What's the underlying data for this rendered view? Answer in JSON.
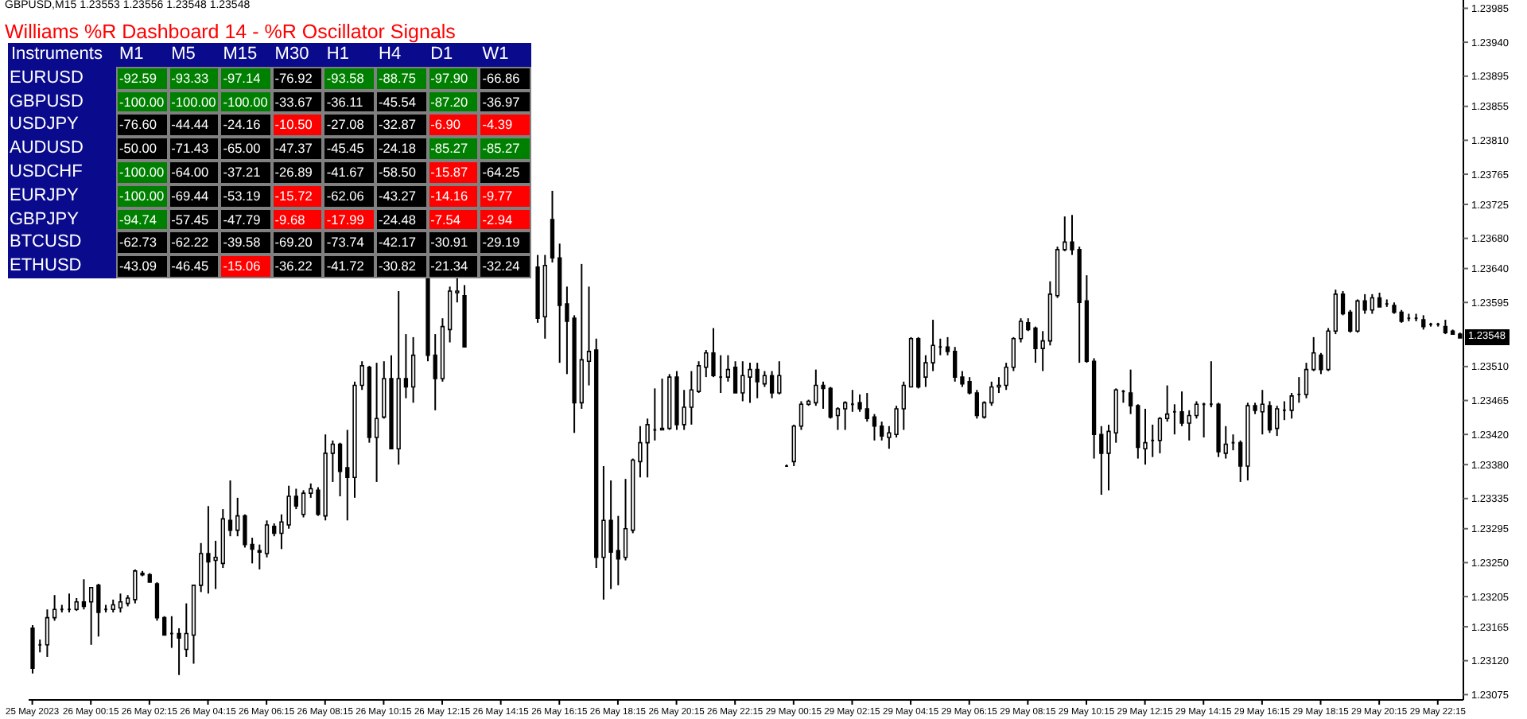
{
  "chart_data": [
    {
      "type": "candlestick",
      "title": "GBPUSD,M15  1.23553 1.23556 1.23548 1.23548",
      "color": "#000000",
      "categories": [
        "25 May 2023",
        null,
        null,
        null,
        null,
        null,
        null,
        null,
        "26 May 00:15",
        null,
        null,
        null,
        null,
        null,
        null,
        null,
        "26 May 02:15",
        null,
        null,
        null,
        null,
        null,
        null,
        null,
        "26 May 04:15",
        null,
        null,
        null,
        null,
        null,
        null,
        null,
        "26 May 06:15",
        null,
        null,
        null,
        null,
        null,
        null,
        null,
        "26 May 08:15",
        null,
        null,
        null,
        null,
        null,
        null,
        null,
        "26 May 10:15",
        null,
        null,
        null,
        null,
        null,
        null,
        null,
        "26 May 12:15",
        null,
        null,
        null,
        null,
        null,
        null,
        null,
        "26 May 14:15",
        null,
        null,
        null,
        null,
        null,
        null,
        null,
        "26 May 16:15",
        null,
        null,
        null,
        null,
        null,
        null,
        null,
        "26 May 18:15",
        null,
        null,
        null,
        null,
        null,
        null,
        null,
        "26 May 20:15",
        null,
        null,
        null,
        null,
        null,
        null,
        null,
        "26 May 22:15",
        null,
        null,
        null,
        null,
        null,
        null,
        null,
        "29 May 00:15",
        null,
        null,
        null,
        null,
        null,
        null,
        null,
        "29 May 02:15",
        null,
        null,
        null,
        null,
        null,
        null,
        null,
        "29 May 04:15",
        null,
        null,
        null,
        null,
        null,
        null,
        null,
        "29 May 06:15",
        null,
        null,
        null,
        null,
        null,
        null,
        null,
        "29 May 08:15",
        null,
        null,
        null,
        null,
        null,
        null,
        null,
        "29 May 10:15",
        null,
        null,
        null,
        null,
        null,
        null,
        null,
        "29 May 12:15",
        null,
        null,
        null,
        null,
        null,
        null,
        null,
        "29 May 14:15",
        null,
        null,
        null,
        null,
        null,
        null,
        null,
        "29 May 16:15",
        null,
        null,
        null,
        null,
        null,
        null,
        null,
        "29 May 18:15",
        null,
        null,
        null,
        null,
        null,
        null,
        null,
        "29 May 20:15",
        null,
        null,
        null,
        null,
        null,
        null,
        null,
        "29 May 22:15",
        null,
        null,
        null
      ],
      "ohlc": [
        [
          1.23163,
          1.23167,
          1.23103,
          1.2311
        ],
        [
          1.23141,
          1.23148,
          1.23131,
          1.23141
        ],
        [
          1.23141,
          1.23188,
          1.23125,
          1.23177
        ],
        [
          1.23177,
          1.23207,
          1.23173,
          1.23188
        ],
        [
          1.23188,
          1.23194,
          1.23184,
          1.23188
        ],
        [
          1.23188,
          1.23209,
          1.23184,
          1.23188
        ],
        [
          1.23188,
          1.23203,
          1.23186,
          1.23198
        ],
        [
          1.23198,
          1.23228,
          1.23188,
          1.23192
        ],
        [
          1.23198,
          1.23217,
          1.23141,
          1.23217
        ],
        [
          1.2322,
          1.23222,
          1.23152,
          1.23184
        ],
        [
          1.23188,
          1.23194,
          1.23184,
          1.23188
        ],
        [
          1.23188,
          1.23201,
          1.23184,
          1.23194
        ],
        [
          1.2319,
          1.23209,
          1.23184,
          1.23198
        ],
        [
          1.23196,
          1.23207,
          1.23192,
          1.23203
        ],
        [
          1.23201,
          1.23241,
          1.23196,
          1.23239
        ],
        [
          1.23236,
          1.23239,
          1.23232,
          1.23234
        ],
        [
          1.23234,
          1.23236,
          1.23224,
          1.23224
        ],
        [
          1.23222,
          1.23224,
          1.23173,
          1.23177
        ],
        [
          1.23177,
          1.23179,
          1.23154,
          1.23154
        ],
        [
          1.23156,
          1.23179,
          1.23137,
          1.23156
        ],
        [
          1.23156,
          1.23163,
          1.23101,
          1.2315
        ],
        [
          1.23135,
          1.23196,
          1.23125,
          1.23156
        ],
        [
          1.23154,
          1.2322,
          1.23116,
          1.2322
        ],
        [
          1.2322,
          1.23276,
          1.23211,
          1.23262
        ],
        [
          1.23262,
          1.23325,
          1.23209,
          1.23251
        ],
        [
          1.23253,
          1.23279,
          1.23215,
          1.23257
        ],
        [
          1.23249,
          1.23321,
          1.23243,
          1.23308
        ],
        [
          1.23306,
          1.23359,
          1.23285,
          1.23293
        ],
        [
          1.23293,
          1.23336,
          1.23285,
          1.23312
        ],
        [
          1.23312,
          1.23314,
          1.2327,
          1.23274
        ],
        [
          1.23274,
          1.23283,
          1.23249,
          1.23268
        ],
        [
          1.23266,
          1.23274,
          1.23241,
          1.23264
        ],
        [
          1.23262,
          1.23306,
          1.23257,
          1.233
        ],
        [
          1.23298,
          1.23302,
          1.23285,
          1.23289
        ],
        [
          1.23289,
          1.23314,
          1.23268,
          1.23304
        ],
        [
          1.233,
          1.23352,
          1.23295,
          1.23338
        ],
        [
          1.23338,
          1.23348,
          1.23321,
          1.23325
        ],
        [
          1.23314,
          1.23346,
          1.2331,
          1.23342
        ],
        [
          1.23342,
          1.23355,
          1.23336,
          1.23348
        ],
        [
          1.23346,
          1.2335,
          1.23312,
          1.23314
        ],
        [
          1.23312,
          1.2342,
          1.23306,
          1.23395
        ],
        [
          1.23395,
          1.23412,
          1.23357,
          1.23407
        ],
        [
          1.23407,
          1.23409,
          1.23338,
          1.23371
        ],
        [
          1.23376,
          1.23426,
          1.23306,
          1.23363
        ],
        [
          1.23363,
          1.2349,
          1.23336,
          1.23485
        ],
        [
          1.23485,
          1.23517,
          1.23479,
          1.23511
        ],
        [
          1.23509,
          1.23511,
          1.23409,
          1.23416
        ],
        [
          1.23416,
          1.23515,
          1.23357,
          1.23441
        ],
        [
          1.23443,
          1.23517,
          1.23441,
          1.23494
        ],
        [
          1.23494,
          1.23525,
          1.23401,
          1.23401
        ],
        [
          1.23401,
          1.2361,
          1.2338,
          1.23494
        ],
        [
          1.23494,
          1.23553,
          1.23468,
          1.23483
        ],
        [
          1.23483,
          1.23549,
          1.23462,
          1.23525
        ],
        null,
        [
          1.23648,
          1.23663,
          1.23517,
          1.23525
        ],
        [
          1.23525,
          1.23553,
          1.23452,
          1.23494
        ],
        [
          1.23494,
          1.23574,
          1.2349,
          1.23563
        ],
        [
          1.23559,
          1.23616,
          1.23542,
          1.2361
        ],
        [
          1.23608,
          1.23627,
          1.23595,
          1.2361
        ],
        [
          1.23604,
          1.23618,
          1.23536,
          1.23536
        ],
        null,
        null,
        null,
        null,
        null,
        null,
        null,
        null,
        null,
        [
          1.23642,
          1.23658,
          1.23568,
          1.23574
        ],
        [
          1.23576,
          1.23658,
          1.23547,
          1.23644
        ],
        [
          1.23705,
          1.23743,
          1.23648,
          1.23654
        ],
        [
          1.23654,
          1.23673,
          1.23515,
          1.23591
        ],
        [
          1.23593,
          1.23616,
          1.235,
          1.2357
        ],
        [
          1.23574,
          1.23578,
          1.23422,
          1.23462
        ],
        [
          1.23462,
          1.23646,
          1.23454,
          1.23519
        ],
        [
          1.23517,
          1.23616,
          1.23485,
          1.2353
        ],
        [
          1.23532,
          1.23547,
          1.23243,
          1.23257
        ],
        [
          1.23257,
          1.23378,
          1.23201,
          1.23306
        ],
        [
          1.23306,
          1.23359,
          1.23215,
          1.23264
        ],
        [
          1.23266,
          1.23312,
          1.2322,
          1.23255
        ],
        [
          1.23257,
          1.23361,
          1.23253,
          1.23295
        ],
        [
          1.23293,
          1.23388,
          1.23289,
          1.23386
        ],
        [
          1.23384,
          1.23431,
          1.23363,
          1.23409
        ],
        [
          1.23409,
          1.23441,
          1.23363,
          1.23433
        ],
        [
          1.23426,
          1.23481,
          1.23412,
          1.23426
        ],
        [
          1.23426,
          1.23494,
          1.23426,
          1.23428
        ],
        [
          1.23428,
          1.235,
          1.23426,
          1.23496
        ],
        [
          1.23496,
          1.23504,
          1.23426,
          1.23433
        ],
        [
          1.23433,
          1.23479,
          1.23426,
          1.23456
        ],
        [
          1.23456,
          1.23504,
          1.23433,
          1.23479
        ],
        [
          1.23477,
          1.23517,
          1.23475,
          1.23511
        ],
        [
          1.23509,
          1.23532,
          1.23496,
          1.23528
        ],
        [
          1.23528,
          1.23561,
          1.23496,
          1.23498
        ],
        [
          1.23496,
          1.23525,
          1.23475,
          1.23496
        ],
        [
          1.23496,
          1.23525,
          1.2349,
          1.23506
        ],
        [
          1.23509,
          1.23517,
          1.23475,
          1.23475
        ],
        [
          1.23475,
          1.23517,
          1.23464,
          1.23498
        ],
        [
          1.23496,
          1.23515,
          1.23462,
          1.23506
        ],
        [
          1.23506,
          1.23515,
          1.23468,
          1.2349
        ],
        [
          1.23487,
          1.23504,
          1.23483,
          1.23498
        ],
        [
          1.23498,
          1.23504,
          1.23468,
          1.23475
        ],
        [
          1.23475,
          1.23517,
          1.23473,
          1.23498
        ],
        [
          1.23378,
          1.2338,
          1.23378,
          1.23378
        ],
        [
          1.23384,
          1.23433,
          1.23378,
          1.23431
        ],
        [
          1.23431,
          1.23464,
          1.23426,
          1.2346
        ],
        [
          1.2346,
          1.23466,
          1.23458,
          1.23464
        ],
        [
          1.23462,
          1.23506,
          1.23458,
          1.23485
        ],
        [
          1.23485,
          1.2349,
          1.23454,
          1.23481
        ],
        [
          1.23481,
          1.23483,
          1.23441,
          1.23443
        ],
        [
          1.23445,
          1.23456,
          1.23426,
          1.23454
        ],
        [
          1.23454,
          1.23464,
          1.23426,
          1.23462
        ],
        [
          1.2346,
          1.23479,
          1.2345,
          1.2346
        ],
        [
          1.23462,
          1.23473,
          1.2345,
          1.23454
        ],
        [
          1.23454,
          1.23475,
          1.23437,
          1.23441
        ],
        [
          1.23443,
          1.23447,
          1.23412,
          1.23431
        ],
        [
          1.23431,
          1.23437,
          1.23412,
          1.23418
        ],
        [
          1.23416,
          1.23431,
          1.23401,
          1.23422
        ],
        [
          1.2342,
          1.23458,
          1.23416,
          1.23454
        ],
        [
          1.23454,
          1.2349,
          1.23426,
          1.23485
        ],
        [
          1.23483,
          1.23549,
          1.23483,
          1.23547
        ],
        [
          1.23547,
          1.23549,
          1.23481,
          1.23483
        ],
        [
          1.23496,
          1.23525,
          1.23483,
          1.23515
        ],
        [
          1.23515,
          1.23572,
          1.23504,
          1.23538
        ],
        [
          1.23536,
          1.23547,
          1.23525,
          1.23536
        ],
        [
          1.23536,
          1.23549,
          1.23525,
          1.2353
        ],
        [
          1.2353,
          1.23536,
          1.2349,
          1.23496
        ],
        [
          1.23496,
          1.23504,
          1.23483,
          1.23487
        ],
        [
          1.2349,
          1.23496,
          1.23473,
          1.23475
        ],
        [
          1.23475,
          1.23479,
          1.23441,
          1.23445
        ],
        [
          1.23443,
          1.23464,
          1.23441,
          1.23462
        ],
        [
          1.23462,
          1.2349,
          1.23458,
          1.23483
        ],
        [
          1.23483,
          1.23496,
          1.23475,
          1.23485
        ],
        [
          1.23485,
          1.23515,
          1.23479,
          1.23509
        ],
        [
          1.23509,
          1.23549,
          1.23504,
          1.23547
        ],
        [
          1.23547,
          1.23574,
          1.23542,
          1.2357
        ],
        [
          1.23568,
          1.23574,
          1.23557,
          1.23559
        ],
        [
          1.23561,
          1.23563,
          1.23515,
          1.23534
        ],
        [
          1.23534,
          1.23557,
          1.23504,
          1.23544
        ],
        [
          1.23544,
          1.23623,
          1.23538,
          1.23606
        ],
        [
          1.23604,
          1.23669,
          1.23601,
          1.23665
        ],
        [
          1.23665,
          1.23709,
          1.23663,
          1.23675
        ],
        [
          1.23675,
          1.23711,
          1.23658,
          1.23665
        ],
        [
          1.23665,
          1.23669,
          1.23515,
          1.23595
        ],
        [
          1.23597,
          1.23631,
          1.23515,
          1.23517
        ],
        [
          1.23517,
          1.23521,
          1.23388,
          1.2342
        ],
        [
          1.2342,
          1.23431,
          1.2334,
          1.23395
        ],
        [
          1.23395,
          1.23433,
          1.23346,
          1.23424
        ],
        [
          1.23422,
          1.23481,
          1.23409,
          1.23479
        ],
        [
          1.23477,
          1.23479,
          1.23462,
          1.23477
        ],
        [
          1.23475,
          1.23506,
          1.23447,
          1.23458
        ],
        [
          1.23458,
          1.2346,
          1.23388,
          1.23403
        ],
        [
          1.23401,
          1.23454,
          1.2338,
          1.23409
        ],
        [
          1.23412,
          1.23433,
          1.2339,
          1.23412
        ],
        [
          1.23412,
          1.23443,
          1.23395,
          1.23441
        ],
        [
          1.23441,
          1.23485,
          1.23437,
          1.23447
        ],
        [
          1.2345,
          1.2346,
          1.2342,
          1.2345
        ],
        [
          1.2345,
          1.23477,
          1.23431,
          1.23435
        ],
        [
          1.23435,
          1.23452,
          1.23412,
          1.23445
        ],
        [
          1.23445,
          1.23464,
          1.23441,
          1.2346
        ],
        [
          1.2346,
          1.23462,
          1.23416,
          1.2346
        ],
        [
          1.2346,
          1.23517,
          1.23456,
          1.2346
        ],
        [
          1.2346,
          1.23462,
          1.2339,
          1.23397
        ],
        [
          1.23395,
          1.23431,
          1.23388,
          1.23407
        ],
        [
          1.23409,
          1.2342,
          1.23399,
          1.23409
        ],
        [
          1.23409,
          1.23412,
          1.23357,
          1.23378
        ],
        [
          1.23378,
          1.23462,
          1.23359,
          1.23458
        ],
        [
          1.23458,
          1.23462,
          1.23447,
          1.23452
        ],
        [
          1.2345,
          1.23479,
          1.2342,
          1.2346
        ],
        [
          1.23458,
          1.23464,
          1.23422,
          1.23426
        ],
        [
          1.23428,
          1.23458,
          1.23418,
          1.23454
        ],
        [
          1.23452,
          1.23464,
          1.23439,
          1.23452
        ],
        [
          1.23452,
          1.23475,
          1.23441,
          1.23471
        ],
        [
          1.23473,
          1.23496,
          1.23462,
          1.23473
        ],
        [
          1.23473,
          1.23515,
          1.23468,
          1.23506
        ],
        [
          1.23506,
          1.23549,
          1.23504,
          1.23528
        ],
        [
          1.23525,
          1.23528,
          1.235,
          1.23506
        ],
        [
          1.23506,
          1.23561,
          1.23504,
          1.23557
        ],
        [
          1.23557,
          1.23612,
          1.23553,
          1.23606
        ],
        [
          1.23606,
          1.2361,
          1.23578,
          1.2358
        ],
        [
          1.23582,
          1.23585,
          1.23555,
          1.23557
        ],
        [
          1.23557,
          1.23599,
          1.23555,
          1.23597
        ],
        [
          1.23597,
          1.23606,
          1.2358,
          1.23585
        ],
        [
          1.23585,
          1.23606,
          1.2358,
          1.23601
        ],
        [
          1.23601,
          1.23608,
          1.23589,
          1.23589
        ],
        [
          1.23593,
          1.23599,
          1.23589,
          1.23593
        ],
        [
          1.23591,
          1.23595,
          1.2358,
          1.23582
        ],
        [
          1.23582,
          1.23585,
          1.23568,
          1.2357
        ],
        [
          1.23574,
          1.2358,
          1.2357,
          1.23574
        ],
        [
          1.23574,
          1.2358,
          1.2357,
          1.23574
        ],
        [
          1.23572,
          1.23578,
          1.23559,
          1.23563
        ],
        [
          1.23566,
          1.23568,
          1.23563,
          1.23566
        ],
        [
          1.23566,
          1.23568,
          1.23563,
          1.23566
        ],
        [
          1.23563,
          1.23572,
          1.23553,
          1.23555
        ],
        [
          1.23557,
          1.23559,
          1.23553,
          1.23553
        ],
        [
          1.23553,
          1.23555,
          1.23548,
          1.23548
        ]
      ],
      "ylim": [
        1.23068,
        1.23996
      ],
      "yticks": [
        1.23985,
        {
          "value": 1.2394,
          "label": "1.23940"
        },
        1.23895,
        1.23855,
        {
          "value": 1.2381,
          "label": "1.23810"
        },
        1.23765,
        1.23725,
        {
          "value": 1.2368,
          "label": "1.23680"
        },
        {
          "value": 1.2364,
          "label": "1.23640"
        },
        1.23595,
        {
          "value": 1.2351,
          "label": "1.23510"
        },
        1.23465,
        {
          "value": 1.2342,
          "label": "1.23420"
        },
        {
          "value": 1.2338,
          "label": "1.23380"
        },
        1.23335,
        1.23295,
        {
          "value": 1.2325,
          "label": "1.23250"
        },
        1.23205,
        1.23165,
        {
          "value": 1.2312,
          "label": "1.23120"
        },
        1.23075
      ],
      "annotations": [
        {
          "text": "1.23548",
          "y": 1.23548
        }
      ]
    },
    {
      "type": "heatmap",
      "title": "Williams %R Dashboard 14 - %R Oscillator Signals",
      "ylabel": "Instruments",
      "categories": [
        "M1",
        "M5",
        "M15",
        "M30",
        "H1",
        "H4",
        "D1",
        "W1"
      ],
      "y_categories": [
        "EURUSD",
        "GBPUSD",
        "USDJPY",
        "AUDUSD",
        "USDCHF",
        "EURJPY",
        "GBPJPY",
        "BTCUSD",
        "ETHUSD"
      ],
      "cells": [
        [
          -92.59,
          -93.33,
          -97.14,
          -76.92,
          -93.58,
          -88.75,
          -97.9,
          -66.86
        ],
        [
          -100,
          -100,
          -100,
          -33.67,
          -36.11,
          -45.54,
          -87.2,
          -36.97
        ],
        [
          -76.6,
          -44.44,
          -24.16,
          -10.5,
          -27.08,
          -32.87,
          -6.9,
          -4.39
        ],
        [
          -50,
          -71.43,
          -65,
          -47.37,
          -45.45,
          -24.18,
          -85.27,
          -85.27
        ],
        [
          -100,
          -64,
          -37.21,
          -26.89,
          -41.67,
          -58.5,
          -15.87,
          -64.25
        ],
        [
          -100,
          -69.44,
          -53.19,
          -15.72,
          -62.06,
          -43.27,
          -14.16,
          -9.77
        ],
        [
          -94.74,
          -57.45,
          -47.79,
          -9.68,
          -17.99,
          -24.48,
          -7.54,
          -2.94
        ],
        [
          -62.73,
          -62.22,
          -39.58,
          -69.2,
          -73.74,
          -42.17,
          -30.91,
          -29.19
        ],
        [
          -43.09,
          -46.45,
          -15.06,
          -36.22,
          -41.72,
          -30.82,
          -21.34,
          -32.24
        ]
      ],
      "cell_labels": [
        [
          "-92.59",
          "-93.33",
          "-97.14",
          "-76.92",
          "-93.58",
          "-88.75",
          "-97.90",
          "-66.86"
        ],
        [
          "-100.00",
          "-100.00",
          "-100.00",
          "-33.67",
          "-36.11",
          "-45.54",
          "-87.20",
          "-36.97"
        ],
        [
          "-76.60",
          "-44.44",
          "-24.16",
          "-10.50",
          "-27.08",
          "-32.87",
          "-6.90",
          "-4.39"
        ],
        [
          "-50.00",
          "-71.43",
          "-65.00",
          "-47.37",
          "-45.45",
          "-24.18",
          "-85.27",
          "-85.27"
        ],
        [
          "-100.00",
          "-64.00",
          "-37.21",
          "-26.89",
          "-41.67",
          "-58.50",
          "-15.87",
          "-64.25"
        ],
        [
          "-100.00",
          "-69.44",
          "-53.19",
          "-15.72",
          "-62.06",
          "-43.27",
          "-14.16",
          "-9.77"
        ],
        [
          "-94.74",
          "-57.45",
          "-47.79",
          "-9.68",
          "-17.99",
          "-24.48",
          "-7.54",
          "-2.94"
        ],
        [
          "-62.73",
          "-62.22",
          "-39.58",
          "-69.20",
          "-73.74",
          "-42.17",
          "-30.91",
          "-29.19"
        ],
        [
          "-43.09",
          "-46.45",
          "-15.06",
          "-36.22",
          "-41.72",
          "-30.82",
          "-21.34",
          "-32.24"
        ]
      ]
    }
  ]
}
